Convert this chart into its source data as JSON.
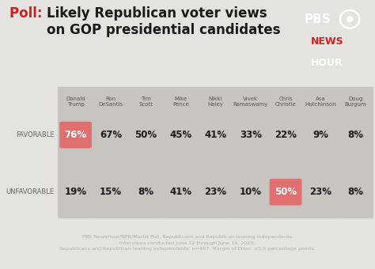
{
  "title_poll": "Poll:  ",
  "title_main": "Likely Republican voter views\non GOP presidential candidates",
  "background_color": "#e5e3e0",
  "highlight_red": "#e07070",
  "text_dark": "#1a1a1a",
  "candidates": [
    "Donald\nTrump",
    "Ron\nDeSantis",
    "Tim\nScott",
    "Mike\nPence",
    "Nikki\nHaley",
    "Vivek\nRamaswamy",
    "Chris\nChristie",
    "Asa\nHutchinson",
    "Doug\nBurgum"
  ],
  "favorable": [
    76,
    67,
    50,
    45,
    41,
    33,
    22,
    9,
    8
  ],
  "unfavorable": [
    19,
    15,
    8,
    41,
    23,
    10,
    50,
    23,
    8
  ],
  "favorable_highlight": [
    0
  ],
  "unfavorable_highlight": [
    6
  ],
  "col_color": "#c8c4bf",
  "footer_text": "PBS NewsHour/NPR/Marist Poll, Republicans and Republican-leaning independents.\nInterviews conducted June 12 through June 14, 2023.\nRepublicans and Republican-leaning independents: n=467. Margin of Error: ±5.9 percentage points.",
  "footer_bg": "#2b3245",
  "footer_text_color": "#b0b0b0",
  "logo_bg": "#1c2540",
  "logo_red": "#cc2222",
  "row_label_color": "#666666",
  "name_color": "#555555"
}
